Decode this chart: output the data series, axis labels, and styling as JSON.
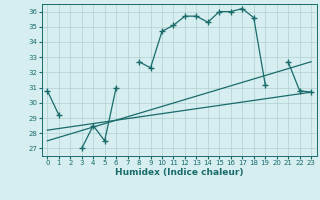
{
  "title": "",
  "xlabel": "Humidex (Indice chaleur)",
  "background_color": "#d6eef0",
  "grid_color": "#b0d0d0",
  "line_color": "#1a6b6b",
  "xlim": [
    -0.5,
    23.5
  ],
  "ylim": [
    26.5,
    36.5
  ],
  "xticks": [
    0,
    1,
    2,
    3,
    4,
    5,
    6,
    7,
    8,
    9,
    10,
    11,
    12,
    13,
    14,
    15,
    16,
    17,
    18,
    19,
    20,
    21,
    22,
    23
  ],
  "yticks": [
    27,
    28,
    29,
    30,
    31,
    32,
    33,
    34,
    35,
    36
  ],
  "main_curve": {
    "x": [
      0,
      1,
      3,
      4,
      5,
      6,
      8,
      9,
      10,
      11,
      12,
      13,
      14,
      15,
      16,
      17,
      18,
      19,
      21,
      22,
      23
    ],
    "y": [
      30.8,
      29.2,
      27.0,
      28.5,
      27.5,
      31.0,
      32.7,
      32.3,
      34.7,
      35.1,
      35.7,
      35.7,
      35.3,
      36.0,
      36.0,
      36.2,
      35.6,
      31.2,
      32.7,
      30.8,
      30.7
    ]
  },
  "main_curve_segments": [
    {
      "x": [
        0,
        1
      ],
      "y": [
        30.8,
        29.2
      ]
    },
    {
      "x": [
        3,
        4,
        5,
        6
      ],
      "y": [
        27.0,
        28.5,
        27.5,
        31.0
      ]
    },
    {
      "x": [
        8,
        9,
        10,
        11,
        12,
        13,
        14,
        15,
        16,
        17,
        18,
        19
      ],
      "y": [
        32.7,
        32.3,
        34.7,
        35.1,
        35.7,
        35.7,
        35.3,
        36.0,
        36.0,
        36.2,
        35.6,
        31.2
      ]
    },
    {
      "x": [
        21,
        22,
        23
      ],
      "y": [
        32.7,
        30.8,
        30.7
      ]
    }
  ],
  "line1": {
    "x": [
      0,
      23
    ],
    "y": [
      28.2,
      30.7
    ]
  },
  "line2": {
    "x": [
      0,
      23
    ],
    "y": [
      27.5,
      32.7
    ]
  }
}
